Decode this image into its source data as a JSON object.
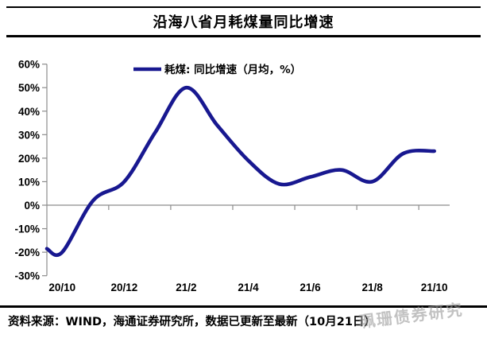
{
  "header": {
    "title": "沿海八省月耗煤量同比增速"
  },
  "footer": {
    "source_note": "资料来源：WIND，海通证券研究所，数据已更新至最新（10月21日）",
    "watermark": "珮珊债券研究"
  },
  "chart_data": {
    "type": "line",
    "title": "沿海八省月耗煤量同比增速",
    "legend": "耗煤: 同比增速（月均，%）",
    "categories": [
      "20/10",
      "20/11",
      "20/12",
      "21/1",
      "21/2",
      "21/3",
      "21/4",
      "21/5",
      "21/6",
      "21/7",
      "21/8",
      "21/9",
      "21/10"
    ],
    "values": [
      -20,
      2,
      10,
      31,
      50,
      34,
      19,
      9,
      12,
      15,
      10,
      22,
      23
    ],
    "axis_edge_start_value": -18.5,
    "x_tick_labels_shown": [
      "20/10",
      "20/12",
      "21/2",
      "21/4",
      "21/6",
      "21/8",
      "21/10"
    ],
    "y_tick_labels": [
      "60%",
      "50%",
      "40%",
      "30%",
      "20%",
      "10%",
      "0%",
      "-10%",
      "-20%",
      "-30%"
    ],
    "ylim": [
      -30,
      60
    ],
    "y_tick_step": 10,
    "grid": "zero-line-only",
    "legend_position": "top-center",
    "smooth": true,
    "colors": {
      "line": "#181890",
      "axis": "#8c8c8c",
      "text": "#000000",
      "watermark": "#9a9a9a"
    }
  }
}
